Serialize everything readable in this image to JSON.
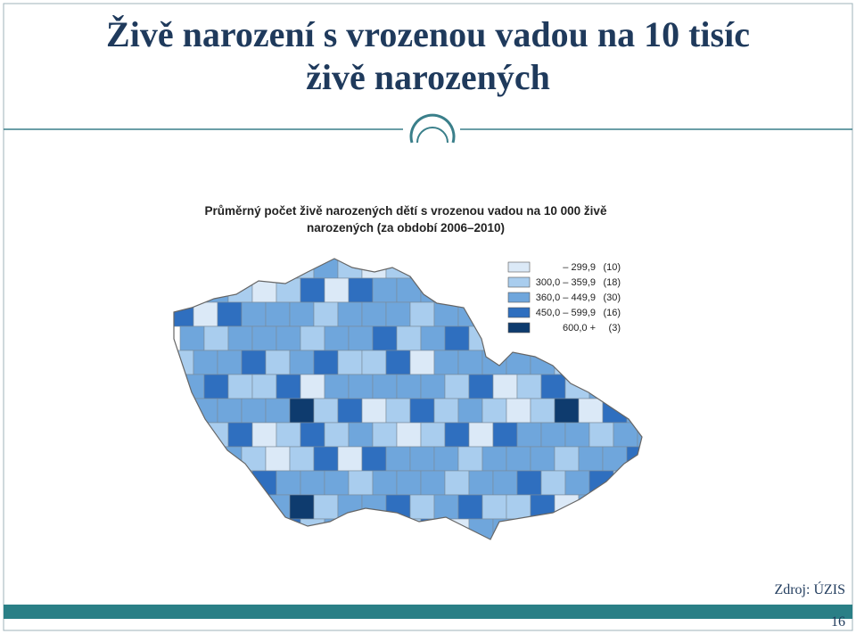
{
  "header": {
    "title_lines": [
      "Živě narození s vrozenou vadou na 10 tisíc",
      "živě narozených"
    ]
  },
  "map": {
    "title_lines": [
      "Průměrný počet živě narozených dětí s vrozenou vadou na 10 000 živě",
      "narozených (za období 2006–2010)"
    ],
    "legend": [
      {
        "range": "– 299,9",
        "count": "(10)",
        "color": "#dbe9f7"
      },
      {
        "range": "300,0 – 359,9",
        "count": "(18)",
        "color": "#a9cdee"
      },
      {
        "range": "360,0 – 449,9",
        "count": "(30)",
        "color": "#6fa6dc"
      },
      {
        "range": "450,0 – 599,9",
        "count": "(16)",
        "color": "#2f6fbf"
      },
      {
        "range": "600,0 +",
        "count": "(3)",
        "color": "#0e3b6e"
      }
    ]
  },
  "footer": {
    "source": "Zdroj: ÚZIS",
    "page": "16"
  }
}
